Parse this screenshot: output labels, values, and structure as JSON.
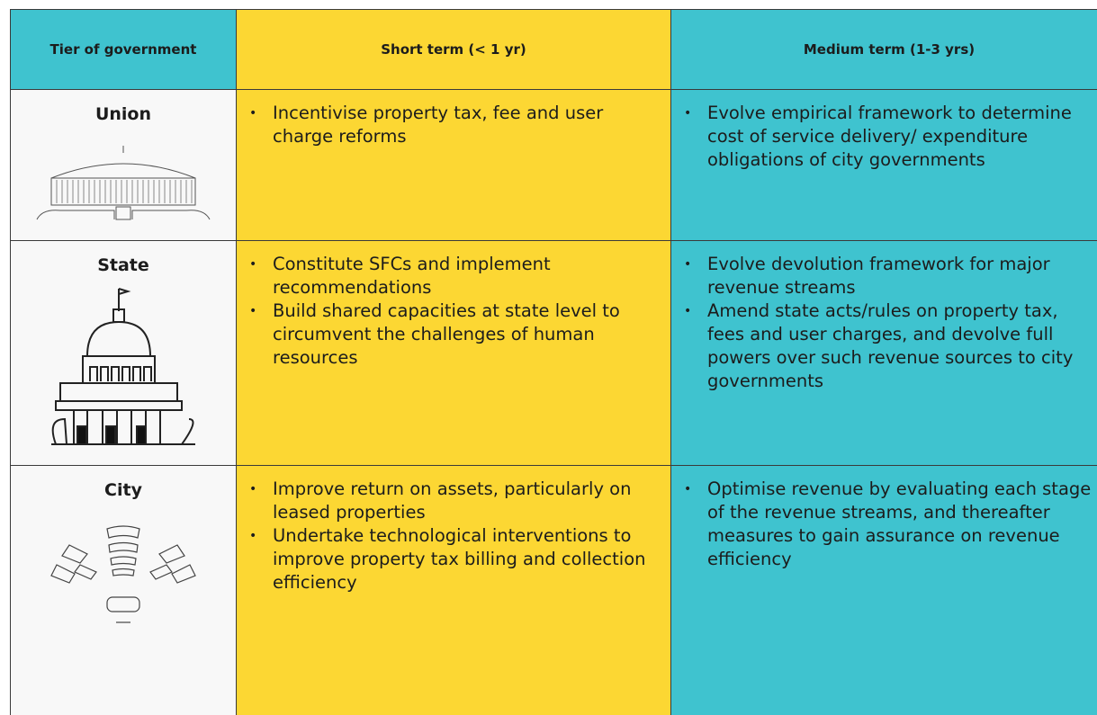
{
  "table": {
    "header": [
      "Tier of government",
      "Short term (< 1 yr)",
      "Medium term (1-3 yrs)"
    ],
    "rows": [
      {
        "tier": "Union",
        "short": [
          "Incentivise property tax, fee and user charge reforms"
        ],
        "medium": [
          "Evolve empirical framework to determine cost of service delivery/ expenditure obligations of city governments"
        ]
      },
      {
        "tier": "State",
        "short": [
          "Constitute SFCs and implement recommendations",
          "Build shared capacities at state level to circumvent the challenges of human resources"
        ],
        "medium": [
          "Evolve devolution framework for major revenue streams",
          "Amend state acts/rules on property tax, fees and user charges, and devolve full powers over such revenue sources to city governments"
        ]
      },
      {
        "tier": "City",
        "short": [
          "Improve return on assets, particularly on leased properties",
          "Undertake technological interventions to improve property tax billing and collection efficiency"
        ],
        "medium": [
          "Optimise revenue by evaluating each stage of the revenue streams, and thereafter measures to gain assurance on revenue efficiency"
        ]
      }
    ]
  }
}
